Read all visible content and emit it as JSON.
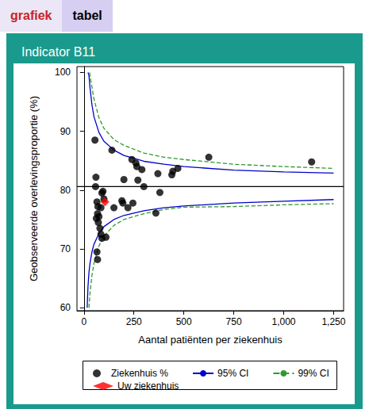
{
  "tabs": [
    "grafiek",
    "tabel"
  ],
  "chart_data": {
    "type": "scatter",
    "title": "Indicator B11",
    "x_label": "Aantal patiënten per ziekenhuis",
    "y_label": "Geobserveerde overlevingsproportie (%)",
    "xlim": [
      -35,
      1300
    ],
    "xticks": [
      0,
      250,
      500,
      750,
      1000,
      1250
    ],
    "ylim": [
      59.5,
      101
    ],
    "yticks": [
      60,
      70,
      80,
      90,
      100
    ],
    "grid": false,
    "legend": "bottom",
    "series": [
      {
        "type": "line",
        "color": "#000000",
        "line_style": "solid",
        "x": [
          -35,
          1300
        ],
        "values": [
          80.6,
          80.6
        ]
      },
      {
        "name": "Ziekenhuis %",
        "type": "scatter",
        "marker": "circle",
        "color": "#000000",
        "x": [
          55,
          60,
          58,
          65,
          70,
          62,
          68,
          72,
          75,
          80,
          85,
          65,
          68,
          90,
          95,
          100,
          85,
          110,
          90,
          140,
          150,
          190,
          195,
          200,
          220,
          240,
          245,
          260,
          265,
          270,
          290,
          300,
          360,
          370,
          380,
          440,
          445,
          470,
          625,
          1140
        ],
        "values": [
          88.5,
          82.2,
          80.6,
          78.0,
          77.2,
          75.2,
          76.0,
          74.5,
          75.5,
          73.5,
          72.5,
          69.5,
          68.2,
          79.5,
          79.8,
          78.5,
          77.0,
          72.0,
          71.8,
          86.8,
          77.0,
          78.2,
          77.8,
          81.8,
          77.0,
          85.2,
          77.8,
          84.6,
          84.0,
          81.7,
          83.5,
          80.6,
          76.1,
          82.8,
          79.6,
          82.6,
          83.2,
          83.7,
          85.6,
          84.8
        ]
      },
      {
        "name": "95% CI",
        "type": "line",
        "color": "#0000cc",
        "line_style": "solid",
        "x": [
          20,
          25,
          30,
          40,
          50,
          75,
          100,
          150,
          200,
          300,
          400,
          500,
          750,
          1000,
          1250
        ],
        "values": [
          100,
          99.5,
          97.5,
          94.5,
          92.5,
          89.8,
          88.3,
          86.8,
          85.9,
          84.9,
          84.4,
          84.0,
          83.4,
          83.1,
          82.9
        ]
      },
      {
        "name": "95% CI",
        "type": "line",
        "color": "#0000cc",
        "line_style": "solid",
        "x": [
          16,
          20,
          25,
          30,
          40,
          50,
          75,
          100,
          150,
          200,
          300,
          400,
          500,
          750,
          1000,
          1250
        ],
        "values": [
          60,
          63.5,
          66,
          67.5,
          69.5,
          70.8,
          72.6,
          73.8,
          75.0,
          75.7,
          76.5,
          77.0,
          77.3,
          77.8,
          78.1,
          78.4
        ]
      },
      {
        "name": "99% CI",
        "type": "line",
        "color": "#2e9a2e",
        "line_style": "dashed",
        "x": [
          28,
          30,
          40,
          50,
          75,
          100,
          150,
          200,
          300,
          400,
          500,
          750,
          1000,
          1250
        ],
        "values": [
          100,
          99.5,
          97.5,
          95.5,
          92.3,
          90.5,
          88.6,
          87.6,
          86.3,
          85.6,
          85.2,
          84.4,
          84.0,
          83.7
        ]
      },
      {
        "name": "99% CI",
        "type": "line",
        "color": "#2e9a2e",
        "line_style": "dashed",
        "x": [
          25,
          30,
          40,
          50,
          75,
          100,
          150,
          200,
          300,
          400,
          500,
          750,
          1000,
          1250
        ],
        "values": [
          60,
          62.5,
          65.5,
          67.5,
          70.5,
          72.2,
          74.0,
          75.0,
          76.0,
          76.7,
          77.1,
          77.2,
          77.5,
          77.7
        ]
      },
      {
        "name": "Uw ziekenhuis",
        "type": "scatter",
        "marker": "diamond",
        "color": "#ff0000",
        "x": [
          105
        ],
        "values": [
          78.0
        ]
      }
    ]
  }
}
